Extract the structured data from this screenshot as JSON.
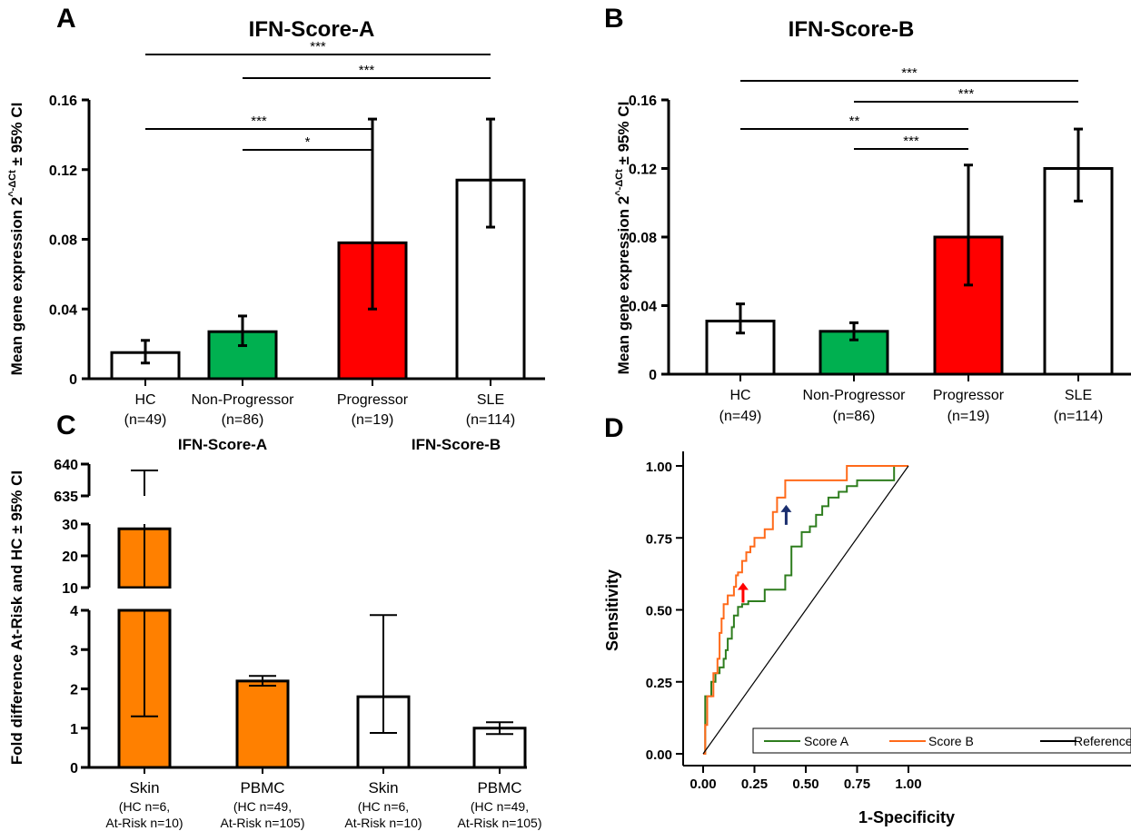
{
  "chart_data": [
    {
      "panel": "A",
      "type": "bar",
      "title": "IFN-Score-A",
      "ylabel": "Mean gene expression 2^-ΔCt ± 95% CI",
      "ylim": [
        0,
        0.16
      ],
      "yticks": [
        "0",
        "0.04",
        "0.08",
        "0.12",
        "0.16"
      ],
      "categories": [
        "HC",
        "Non-Progressor",
        "Progressor",
        "SLE"
      ],
      "category_n": [
        "(n=49)",
        "(n=86)",
        "(n=19)",
        "(n=114)"
      ],
      "values": [
        0.015,
        0.027,
        0.078,
        0.114
      ],
      "ci_low": [
        0.009,
        0.019,
        0.04,
        0.087
      ],
      "ci_high": [
        0.022,
        0.036,
        0.149,
        0.149
      ],
      "bar_colors": [
        "#ffffff",
        "#00b050",
        "#ff0000",
        "#ffffff"
      ],
      "significance": [
        {
          "from": "HC",
          "to": "SLE",
          "label": "***"
        },
        {
          "from": "Non-Progressor",
          "to": "SLE",
          "label": "***"
        },
        {
          "from": "HC",
          "to": "Progressor",
          "label": "***"
        },
        {
          "from": "Non-Progressor",
          "to": "Progressor",
          "label": "*"
        }
      ]
    },
    {
      "panel": "B",
      "type": "bar",
      "title": "IFN-Score-B",
      "ylabel": "Mean gene expression 2^-ΔCt ± 95% CI",
      "ylim": [
        0,
        0.16
      ],
      "yticks": [
        "0",
        "0.04",
        "0.08",
        "0.12",
        "0.16"
      ],
      "categories": [
        "HC",
        "Non-Progressor",
        "Progressor",
        "SLE"
      ],
      "category_n": [
        "(n=49)",
        "(n=86)",
        "(n=19)",
        "(n=114)"
      ],
      "values": [
        0.031,
        0.025,
        0.08,
        0.12
      ],
      "ci_low": [
        0.024,
        0.02,
        0.052,
        0.101
      ],
      "ci_high": [
        0.041,
        0.03,
        0.122,
        0.143
      ],
      "bar_colors": [
        "#ffffff",
        "#00b050",
        "#ff0000",
        "#ffffff"
      ],
      "significance": [
        {
          "from": "HC",
          "to": "SLE",
          "label": "***"
        },
        {
          "from": "Non-Progressor",
          "to": "SLE",
          "label": "***"
        },
        {
          "from": "HC",
          "to": "Progressor",
          "label": "**"
        },
        {
          "from": "Non-Progressor",
          "to": "Progressor",
          "label": "***"
        }
      ]
    },
    {
      "panel": "C",
      "type": "bar",
      "ylabel": "Fold difference At-Risk and HC ± 95% CI",
      "group_labels": [
        "IFN-Score-A",
        "IFN-Score-B"
      ],
      "broken_axis_ticks": [
        "0",
        "1",
        "2",
        "3",
        "4",
        "10",
        "20",
        "30",
        "635",
        "640"
      ],
      "categories": [
        "Skin",
        "PBMC",
        "Skin",
        "PBMC"
      ],
      "category_sub1": [
        "(HC n=6,",
        "(HC n=49,",
        "(HC n=6,",
        "(HC n=49,"
      ],
      "category_sub2": [
        "At-Risk n=10)",
        "At-Risk n=105)",
        "At-Risk n=10)",
        "At-Risk n=105)"
      ],
      "values": [
        28.5,
        2.2,
        1.8,
        1.0
      ],
      "ci_low": [
        1.3,
        2.08,
        0.88,
        0.85
      ],
      "ci_high": [
        639.0,
        2.33,
        3.88,
        1.15
      ],
      "bar_colors": [
        "#ff8000",
        "#ff8000",
        "#ffffff",
        "#ffffff"
      ]
    },
    {
      "panel": "D",
      "type": "line",
      "xlabel": "1-Specificity",
      "ylabel": "Sensitivity",
      "xlim": [
        0,
        1
      ],
      "ylim": [
        0,
        1
      ],
      "xticks": [
        "0.00",
        "0.25",
        "0.50",
        "0.75",
        "1.00"
      ],
      "yticks": [
        "0.00",
        "0.25",
        "0.50",
        "0.75",
        "1.00"
      ],
      "legend": "bottom-right",
      "series": [
        {
          "name": "Score A",
          "color": "#2e7d1e",
          "x": [
            0.0,
            0.01,
            0.01,
            0.04,
            0.04,
            0.06,
            0.06,
            0.08,
            0.08,
            0.1,
            0.1,
            0.11,
            0.11,
            0.12,
            0.12,
            0.14,
            0.14,
            0.15,
            0.15,
            0.17,
            0.17,
            0.19,
            0.19,
            0.22,
            0.22,
            0.3,
            0.3,
            0.4,
            0.4,
            0.43,
            0.43,
            0.48,
            0.48,
            0.52,
            0.52,
            0.55,
            0.55,
            0.58,
            0.58,
            0.61,
            0.61,
            0.66,
            0.66,
            0.7,
            0.7,
            0.75,
            0.75,
            0.93,
            0.93,
            1.0
          ],
          "y": [
            0.0,
            0.0,
            0.2,
            0.2,
            0.25,
            0.25,
            0.28,
            0.28,
            0.3,
            0.3,
            0.33,
            0.33,
            0.36,
            0.36,
            0.4,
            0.4,
            0.44,
            0.44,
            0.48,
            0.48,
            0.51,
            0.51,
            0.52,
            0.52,
            0.53,
            0.53,
            0.57,
            0.57,
            0.62,
            0.62,
            0.72,
            0.72,
            0.77,
            0.77,
            0.79,
            0.79,
            0.83,
            0.83,
            0.86,
            0.86,
            0.89,
            0.89,
            0.91,
            0.91,
            0.93,
            0.93,
            0.95,
            0.95,
            1.0,
            1.0
          ]
        },
        {
          "name": "Score B",
          "color": "#ff6a1a",
          "x": [
            0.0,
            0.01,
            0.01,
            0.02,
            0.02,
            0.05,
            0.05,
            0.07,
            0.07,
            0.08,
            0.08,
            0.09,
            0.09,
            0.1,
            0.1,
            0.12,
            0.12,
            0.15,
            0.15,
            0.16,
            0.16,
            0.17,
            0.17,
            0.19,
            0.19,
            0.21,
            0.21,
            0.23,
            0.23,
            0.25,
            0.25,
            0.3,
            0.3,
            0.34,
            0.34,
            0.36,
            0.36,
            0.4,
            0.4,
            0.7,
            0.7,
            1.0
          ],
          "y": [
            0.0,
            0.0,
            0.1,
            0.1,
            0.2,
            0.2,
            0.28,
            0.28,
            0.33,
            0.33,
            0.42,
            0.42,
            0.47,
            0.47,
            0.52,
            0.52,
            0.55,
            0.55,
            0.58,
            0.58,
            0.62,
            0.62,
            0.63,
            0.63,
            0.67,
            0.67,
            0.7,
            0.7,
            0.72,
            0.72,
            0.75,
            0.75,
            0.78,
            0.78,
            0.84,
            0.84,
            0.89,
            0.89,
            0.95,
            0.95,
            1.0,
            1.0
          ]
        },
        {
          "name": "Reference",
          "color": "#000000",
          "x": [
            0,
            1
          ],
          "y": [
            0,
            1
          ]
        }
      ],
      "arrows": [
        {
          "color": "#ff0000",
          "x": 0.19,
          "y": 0.62
        },
        {
          "color": "#1a2e6e",
          "x": 0.4,
          "y": 0.89
        }
      ]
    }
  ],
  "panel_letters": [
    "A",
    "B",
    "C",
    "D"
  ],
  "labels": {
    "ylabel_prefix": "Mean gene expression 2",
    "ylabel_sup": "^-ΔCt",
    "ylabel_suffix": " ± 95% CI",
    "c_axis_label": "Fold difference At-Risk and HC ± 95% CI"
  }
}
